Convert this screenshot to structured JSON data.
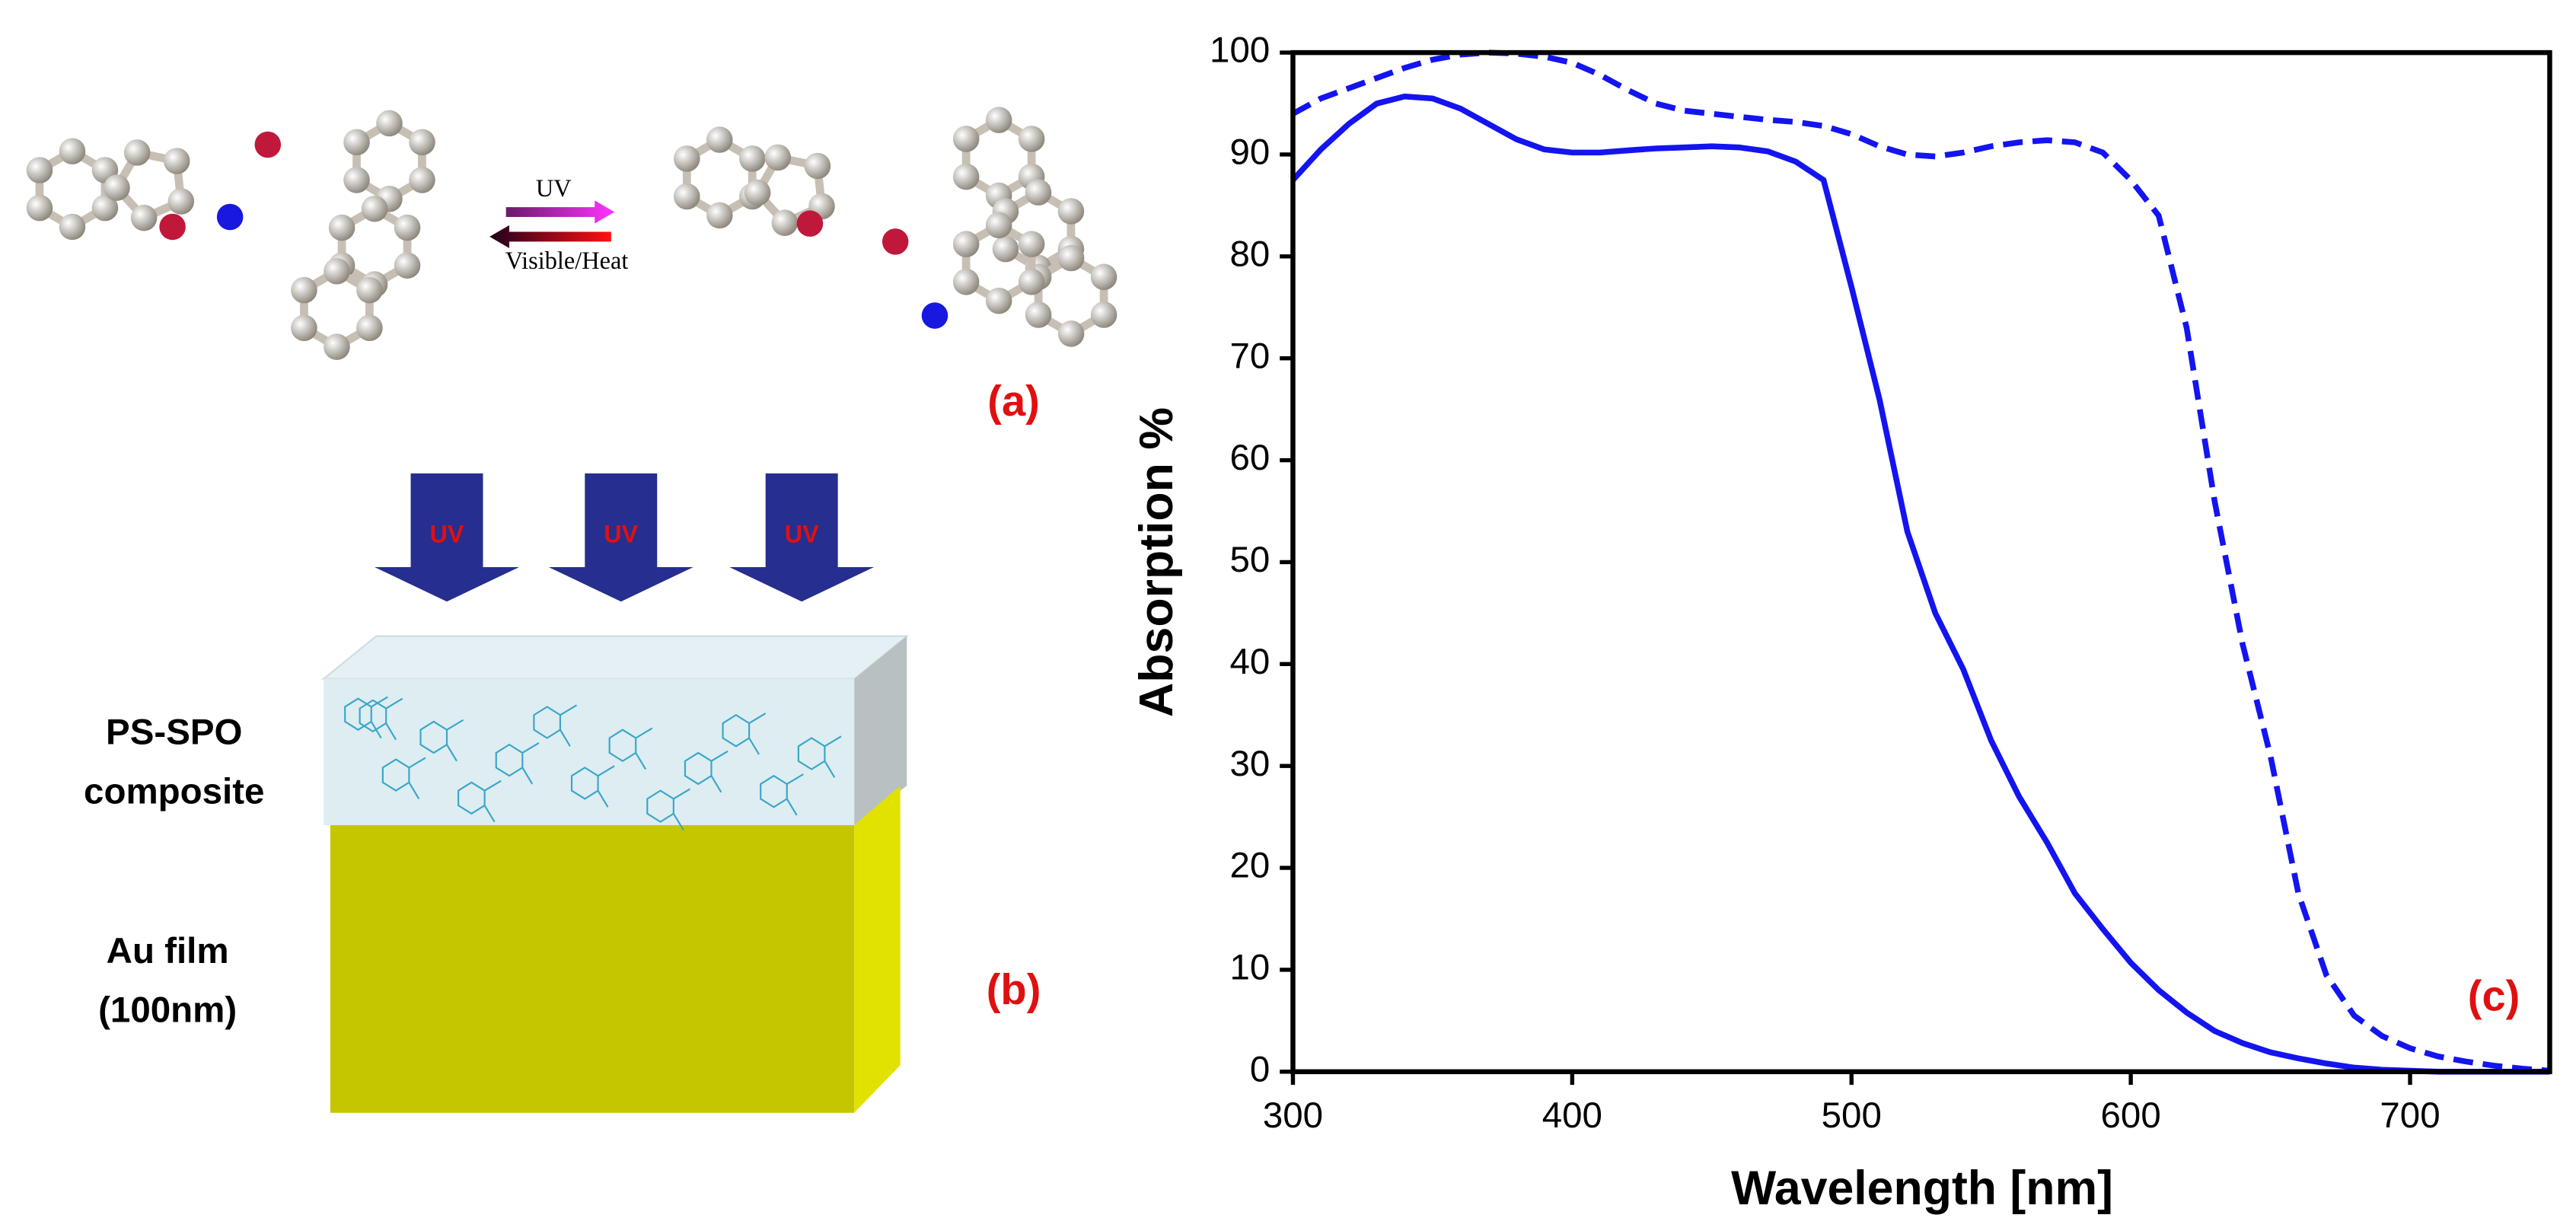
{
  "chart_data": {
    "type": "line",
    "x_label": "Wavelength [nm]",
    "y_label": "Absorption %",
    "panel_label": "(c)",
    "x": [
      300,
      310,
      320,
      330,
      340,
      350,
      360,
      370,
      380,
      390,
      400,
      410,
      420,
      430,
      440,
      450,
      460,
      470,
      480,
      490,
      500,
      510,
      520,
      530,
      540,
      550,
      560,
      570,
      580,
      590,
      600,
      610,
      620,
      630,
      640,
      650,
      660,
      670,
      680,
      690,
      700,
      710,
      720,
      730,
      740,
      750
    ],
    "series": [
      {
        "color": "#1414f0",
        "line_style": "solid",
        "values": [
          87.5,
          90.5,
          93,
          95,
          95.7,
          95.5,
          94.5,
          93,
          91.5,
          90.5,
          90.2,
          90.2,
          90.4,
          90.6,
          90.7,
          90.8,
          90.7,
          90.3,
          89.3,
          87.5,
          77,
          66,
          53,
          45,
          39.5,
          32.5,
          27,
          22.5,
          17.5,
          14,
          10.7,
          8,
          5.8,
          4,
          2.8,
          1.9,
          1.3,
          0.8,
          0.4,
          0.2,
          0.1,
          0,
          0,
          0,
          0,
          0
        ]
      },
      {
        "color": "#1414f0",
        "line_style": "dashed",
        "values": [
          94,
          95.5,
          96.5,
          97.5,
          98.5,
          99.3,
          99.8,
          100,
          99.9,
          99.6,
          99,
          97.8,
          96.3,
          95,
          94.3,
          94,
          93.7,
          93.4,
          93.2,
          92.8,
          92,
          90.8,
          90,
          89.8,
          90.2,
          90.8,
          91.2,
          91.4,
          91.2,
          90.2,
          87.5,
          84,
          73,
          56,
          42,
          31,
          17.5,
          9.5,
          5.5,
          3.5,
          2.3,
          1.5,
          1,
          0.6,
          0.3,
          0.1
        ]
      }
    ],
    "xlim": [
      300,
      750
    ],
    "xticks": [
      300,
      400,
      500,
      600,
      700
    ],
    "ylim": [
      0,
      100
    ],
    "yticks": [
      0,
      10,
      20,
      30,
      40,
      50,
      60,
      70,
      80,
      90,
      100
    ]
  },
  "scheme": {
    "forward": "UV",
    "reverse": "Visible/Heat",
    "label": "(a)"
  },
  "device": {
    "arrows": [
      "UV",
      "UV",
      "UV"
    ],
    "top_layer": [
      "PS-SPO",
      "composite"
    ],
    "bottom_layer": [
      "Au film",
      "(100nm)"
    ],
    "label": "(b)"
  }
}
